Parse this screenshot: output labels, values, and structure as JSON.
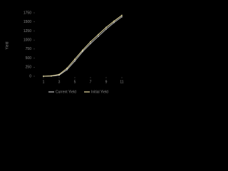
{
  "chart_data": {
    "type": "line",
    "y_label": "Yield",
    "x": [
      1,
      2,
      3,
      4,
      5,
      6,
      7,
      8,
      9,
      10,
      11
    ],
    "series": [
      {
        "name": "Current Yield",
        "color": "#bfbfbf",
        "values": [
          0,
          5,
          30,
          180,
          420,
          680,
          900,
          1100,
          1300,
          1480,
          1640
        ]
      },
      {
        "name": "Initial Yield",
        "color": "#e8dca0",
        "values": [
          0,
          10,
          50,
          220,
          470,
          720,
          950,
          1150,
          1350,
          1520,
          1680
        ]
      }
    ],
    "xlim": [
      0,
      12
    ],
    "xticks": [
      1,
      3,
      5,
      7,
      9,
      11
    ],
    "ylim": [
      0,
      1750
    ],
    "yticks": [
      0,
      250,
      500,
      750,
      1000,
      1250,
      1500,
      1750
    ],
    "grid": false
  }
}
